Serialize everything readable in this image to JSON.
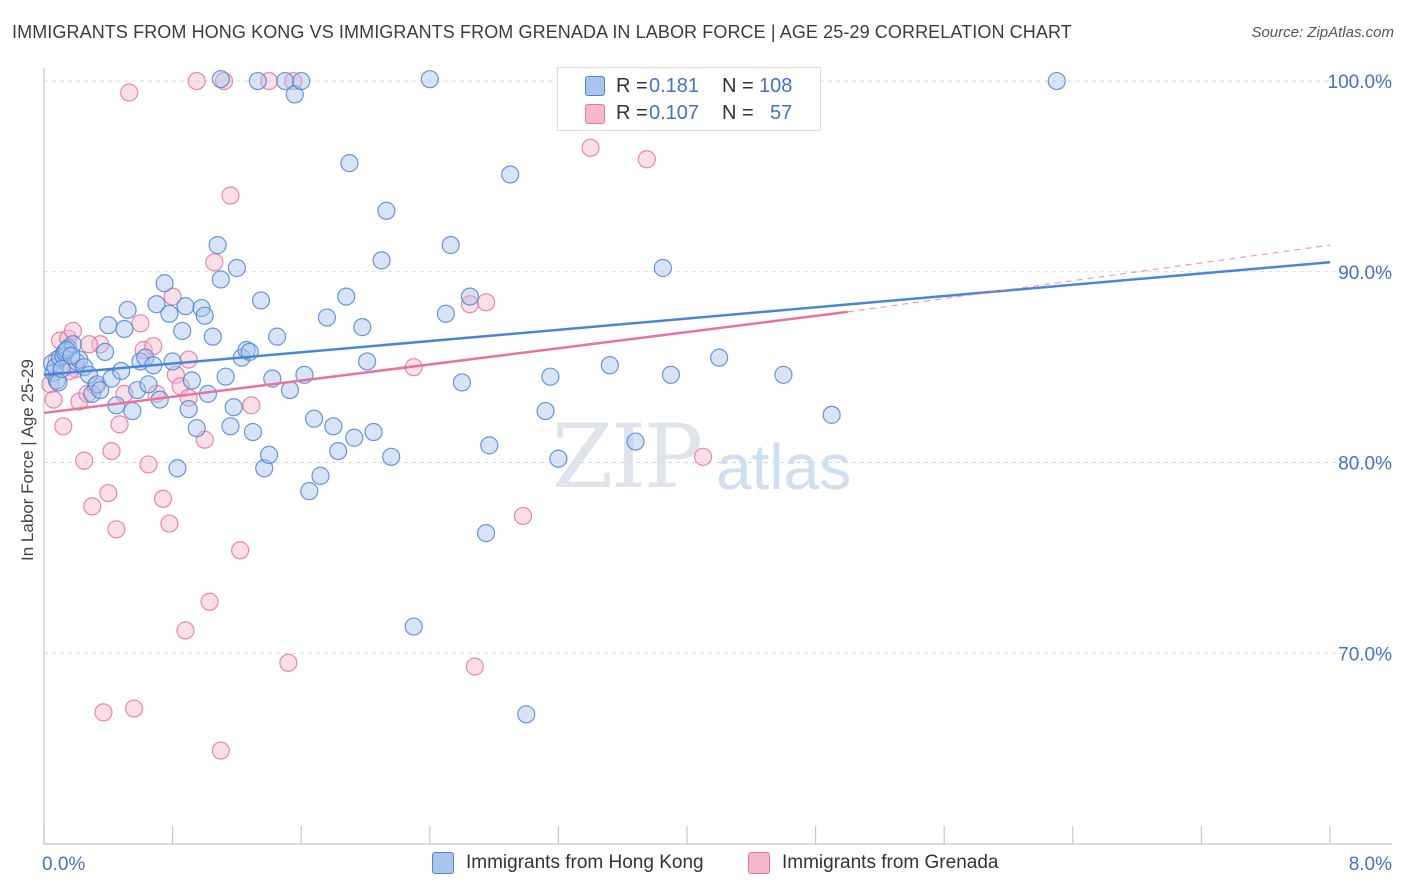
{
  "header": {
    "title": "IMMIGRANTS FROM HONG KONG VS IMMIGRANTS FROM GRENADA IN LABOR FORCE | AGE 25-29 CORRELATION CHART",
    "source": "Source: ZipAtlas.com"
  },
  "watermark": {
    "zip": "ZIP",
    "atlas": "atlas"
  },
  "legend": {
    "rows": [
      {
        "r_key": "R =",
        "r_val": "0.181",
        "n_key": "N =",
        "n_val": "108",
        "color": "#a9c4eb"
      },
      {
        "r_key": "R =",
        "r_val": "0.107",
        "n_key": "N =",
        "n_val": "57",
        "color": "#f5b8cc"
      }
    ]
  },
  "bottom_legend": {
    "items": [
      {
        "label": "Immigrants from Hong Kong",
        "color": "#a9c4eb"
      },
      {
        "label": "Immigrants from Grenada",
        "color": "#f5b8cc"
      }
    ]
  },
  "colors": {
    "hong_kong": "#4a86d8",
    "grenada": "#e8739c",
    "axis_text": "#4472c4",
    "grid": "#d9d9d9"
  },
  "chart_data": {
    "type": "scatter",
    "title": "IMMIGRANTS FROM HONG KONG VS IMMIGRANTS FROM GRENADA IN LABOR FORCE | AGE 25-29 CORRELATION CHART",
    "xlabel": "",
    "ylabel": "In Labor Force | Age 25-29",
    "xlim": [
      0,
      8
    ],
    "ylim": [
      60,
      101
    ],
    "x_ticks": [
      "0.0%",
      "8.0%"
    ],
    "y_ticks": [
      "70.0%",
      "80.0%",
      "90.0%",
      "100.0%"
    ],
    "y_tick_values": [
      70,
      80,
      90,
      100
    ],
    "grid": "horizontal dashed",
    "legend_position": "top-center",
    "series": [
      {
        "name": "Immigrants from Hong Kong",
        "R": 0.181,
        "N": 108,
        "trend": {
          "x": [
            0.0,
            8.0
          ],
          "y": [
            84.6,
            90.5
          ]
        },
        "points": [
          [
            0.05,
            85.2
          ],
          [
            0.06,
            84.7
          ],
          [
            0.07,
            85.0
          ],
          [
            0.08,
            84.3
          ],
          [
            0.1,
            85.5
          ],
          [
            0.12,
            85.6
          ],
          [
            0.13,
            85.8
          ],
          [
            0.15,
            86.0
          ],
          [
            0.18,
            86.2
          ],
          [
            0.2,
            85.3
          ],
          [
            0.22,
            85.4
          ],
          [
            0.25,
            85.0
          ],
          [
            0.28,
            84.6
          ],
          [
            0.3,
            83.6
          ],
          [
            0.33,
            84.1
          ],
          [
            0.35,
            83.8
          ],
          [
            0.38,
            85.8
          ],
          [
            0.4,
            87.2
          ],
          [
            0.42,
            84.4
          ],
          [
            0.45,
            83.0
          ],
          [
            0.48,
            84.8
          ],
          [
            0.5,
            87.0
          ],
          [
            0.52,
            88.0
          ],
          [
            0.55,
            82.7
          ],
          [
            0.58,
            83.8
          ],
          [
            0.6,
            85.3
          ],
          [
            0.63,
            85.5
          ],
          [
            0.65,
            84.1
          ],
          [
            0.68,
            85.1
          ],
          [
            0.7,
            88.3
          ],
          [
            0.72,
            83.3
          ],
          [
            0.75,
            89.4
          ],
          [
            0.78,
            87.8
          ],
          [
            0.8,
            85.3
          ],
          [
            0.83,
            79.7
          ],
          [
            0.86,
            86.9
          ],
          [
            0.88,
            88.2
          ],
          [
            0.9,
            82.8
          ],
          [
            0.92,
            84.3
          ],
          [
            0.95,
            81.8
          ],
          [
            0.98,
            88.1
          ],
          [
            1.0,
            87.7
          ],
          [
            1.02,
            83.6
          ],
          [
            1.05,
            86.6
          ],
          [
            1.08,
            91.4
          ],
          [
            1.1,
            89.6
          ],
          [
            1.13,
            84.5
          ],
          [
            1.16,
            81.9
          ],
          [
            1.18,
            82.9
          ],
          [
            1.2,
            90.2
          ],
          [
            1.23,
            85.5
          ],
          [
            1.26,
            85.9
          ],
          [
            1.28,
            85.8
          ],
          [
            1.3,
            81.6
          ],
          [
            1.33,
            100.0
          ],
          [
            1.35,
            88.5
          ],
          [
            1.37,
            79.7
          ],
          [
            1.4,
            80.4
          ],
          [
            1.42,
            84.4
          ],
          [
            1.45,
            86.6
          ],
          [
            1.5,
            100.0
          ],
          [
            1.53,
            83.8
          ],
          [
            1.56,
            99.3
          ],
          [
            1.6,
            100.0
          ],
          [
            1.62,
            84.6
          ],
          [
            1.65,
            78.5
          ],
          [
            1.68,
            82.3
          ],
          [
            1.72,
            79.3
          ],
          [
            1.76,
            87.6
          ],
          [
            1.8,
            81.9
          ],
          [
            1.83,
            80.6
          ],
          [
            1.88,
            88.7
          ],
          [
            1.9,
            95.7
          ],
          [
            1.93,
            81.3
          ],
          [
            1.98,
            87.1
          ],
          [
            2.01,
            85.3
          ],
          [
            2.05,
            81.6
          ],
          [
            2.1,
            90.6
          ],
          [
            2.13,
            93.2
          ],
          [
            2.16,
            80.3
          ],
          [
            2.3,
            71.4
          ],
          [
            2.5,
            87.8
          ],
          [
            2.53,
            91.4
          ],
          [
            2.6,
            84.2
          ],
          [
            2.65,
            88.7
          ],
          [
            2.75,
            76.3
          ],
          [
            2.77,
            80.9
          ],
          [
            2.9,
            95.1
          ],
          [
            3.0,
            66.8
          ],
          [
            3.12,
            82.7
          ],
          [
            3.15,
            84.5
          ],
          [
            3.2,
            80.2
          ],
          [
            3.52,
            85.1
          ],
          [
            3.68,
            81.1
          ],
          [
            3.85,
            90.2
          ],
          [
            3.9,
            84.6
          ],
          [
            4.0,
            100.0
          ],
          [
            4.2,
            85.5
          ],
          [
            4.6,
            84.6
          ],
          [
            4.9,
            82.5
          ],
          [
            0.09,
            84.2
          ],
          [
            0.14,
            85.9
          ],
          [
            0.11,
            84.9
          ],
          [
            0.17,
            85.6
          ],
          [
            1.1,
            100.1
          ],
          [
            2.4,
            100.1
          ],
          [
            3.6,
            100.1
          ],
          [
            6.3,
            100.0
          ]
        ]
      },
      {
        "name": "Immigrants from Grenada",
        "R": 0.107,
        "N": 57,
        "trend": {
          "x": [
            0.0,
            5.0
          ],
          "y": [
            82.6,
            87.9
          ]
        },
        "trend_extension": {
          "x": [
            5.0,
            8.0
          ],
          "y": [
            87.9,
            91.4
          ]
        },
        "points": [
          [
            0.04,
            84.1
          ],
          [
            0.06,
            83.3
          ],
          [
            0.08,
            85.4
          ],
          [
            0.1,
            86.4
          ],
          [
            0.12,
            81.9
          ],
          [
            0.15,
            86.5
          ],
          [
            0.18,
            86.9
          ],
          [
            0.2,
            84.9
          ],
          [
            0.22,
            83.2
          ],
          [
            0.25,
            80.1
          ],
          [
            0.27,
            83.6
          ],
          [
            0.3,
            77.7
          ],
          [
            0.32,
            84.0
          ],
          [
            0.35,
            86.2
          ],
          [
            0.37,
            66.9
          ],
          [
            0.4,
            78.4
          ],
          [
            0.42,
            80.6
          ],
          [
            0.45,
            76.5
          ],
          [
            0.47,
            82.0
          ],
          [
            0.5,
            83.6
          ],
          [
            0.53,
            99.4
          ],
          [
            0.56,
            67.1
          ],
          [
            0.6,
            87.3
          ],
          [
            0.62,
            85.9
          ],
          [
            0.65,
            79.9
          ],
          [
            0.68,
            86.1
          ],
          [
            0.7,
            83.6
          ],
          [
            0.74,
            78.1
          ],
          [
            0.78,
            76.8
          ],
          [
            0.8,
            88.7
          ],
          [
            0.82,
            84.6
          ],
          [
            0.85,
            84.0
          ],
          [
            0.88,
            71.2
          ],
          [
            0.9,
            83.4
          ],
          [
            0.95,
            100.0
          ],
          [
            1.0,
            81.2
          ],
          [
            1.03,
            72.7
          ],
          [
            1.06,
            90.5
          ],
          [
            1.1,
            64.9
          ],
          [
            1.12,
            100.0
          ],
          [
            1.16,
            94.0
          ],
          [
            1.22,
            75.4
          ],
          [
            1.29,
            83.0
          ],
          [
            1.4,
            100.0
          ],
          [
            1.52,
            69.5
          ],
          [
            1.55,
            100.0
          ],
          [
            2.3,
            85.0
          ],
          [
            2.65,
            88.3
          ],
          [
            2.68,
            69.3
          ],
          [
            2.75,
            88.4
          ],
          [
            2.98,
            77.2
          ],
          [
            3.4,
            96.5
          ],
          [
            3.75,
            95.9
          ],
          [
            4.1,
            80.3
          ],
          [
            0.16,
            84.8
          ],
          [
            0.28,
            86.2
          ],
          [
            0.9,
            85.4
          ]
        ]
      }
    ]
  }
}
